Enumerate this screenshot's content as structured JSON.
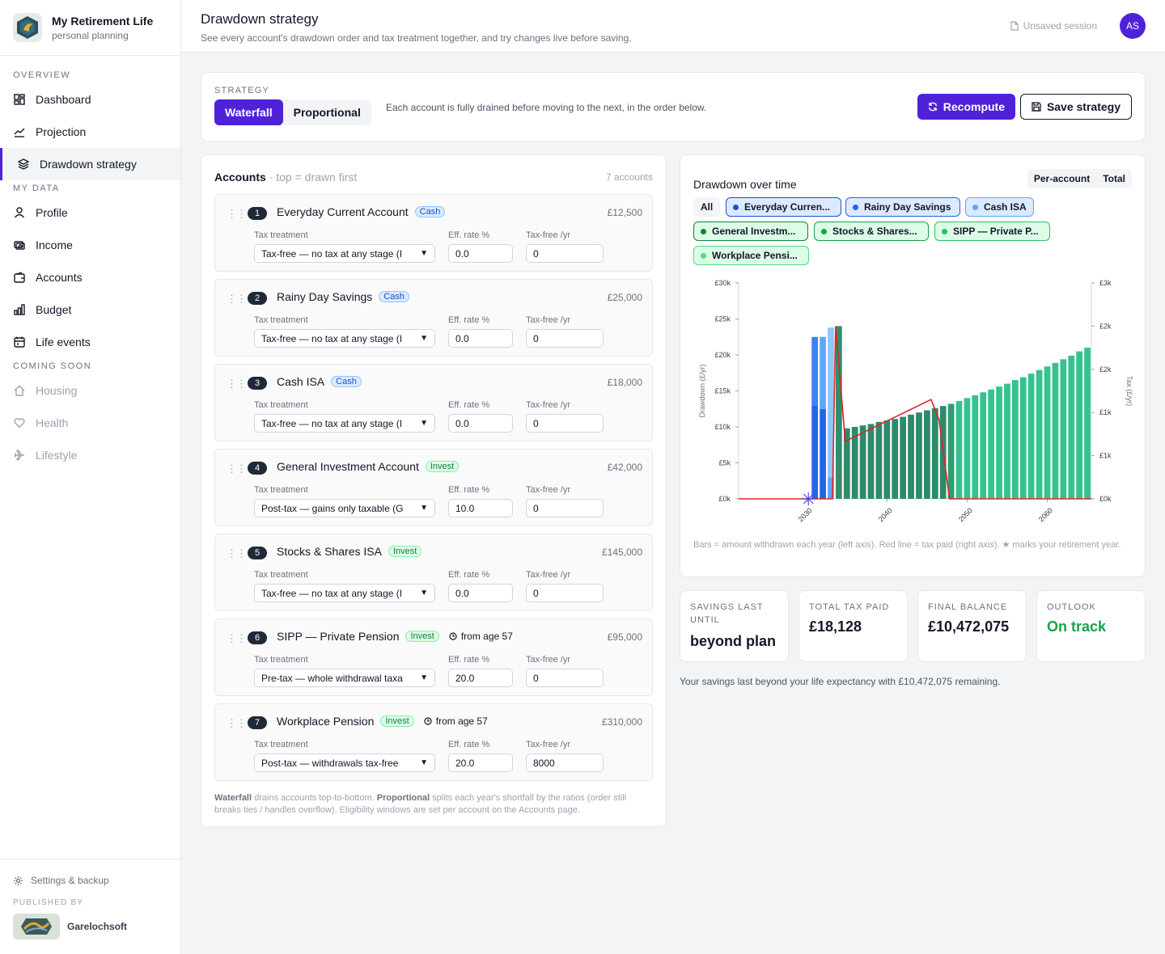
{
  "app": {
    "title": "My Retirement Life",
    "subtitle": "personal planning"
  },
  "sidebar": {
    "sections": {
      "overview": "OVERVIEW",
      "my_data": "MY DATA",
      "coming_soon": "COMING SOON"
    },
    "items": [
      {
        "label": "Dashboard",
        "icon": "dashboard-icon"
      },
      {
        "label": "Projection",
        "icon": "chart-line-icon"
      },
      {
        "label": "Drawdown strategy",
        "icon": "layers-icon"
      },
      {
        "label": "Profile",
        "icon": "user-icon"
      },
      {
        "label": "Income",
        "icon": "income-icon"
      },
      {
        "label": "Accounts",
        "icon": "wallet-icon"
      },
      {
        "label": "Budget",
        "icon": "bar-chart-icon"
      },
      {
        "label": "Life events",
        "icon": "calendar-icon"
      },
      {
        "label": "Housing",
        "icon": "home-icon"
      },
      {
        "label": "Health",
        "icon": "heart-icon"
      },
      {
        "label": "Lifestyle",
        "icon": "plane-icon"
      }
    ],
    "settings": "Settings & backup",
    "published_by": "PUBLISHED BY",
    "publisher": "Garelochsoft"
  },
  "header": {
    "title": "Drawdown strategy",
    "subtitle": "See every account's drawdown order and tax treatment together, and try changes live before saving.",
    "session": "Unsaved session",
    "avatar": "AS"
  },
  "strategy": {
    "label": "STRATEGY",
    "options": [
      "Waterfall",
      "Proportional"
    ],
    "selected": "Waterfall",
    "description": "Each account is fully drained before moving to the next, in the order below.",
    "recompute": "Recompute",
    "save": "Save strategy"
  },
  "accounts_panel": {
    "title": "Accounts",
    "hint": " · top = drawn first",
    "count": "7 accounts",
    "labels": {
      "treatment": "Tax treatment",
      "rate": "Eff. rate %",
      "taxfree": "Tax-free /yr"
    },
    "accounts": [
      {
        "n": "1",
        "name": "Everyday Current Account",
        "tag": "Cash",
        "age": "",
        "balance": "£12,500",
        "treatment": "Tax-free — no tax at any stage (I",
        "rate": "0.0",
        "taxfree": "0"
      },
      {
        "n": "2",
        "name": "Rainy Day Savings",
        "tag": "Cash",
        "age": "",
        "balance": "£25,000",
        "treatment": "Tax-free — no tax at any stage (I",
        "rate": "0.0",
        "taxfree": "0"
      },
      {
        "n": "3",
        "name": "Cash ISA",
        "tag": "Cash",
        "age": "",
        "balance": "£18,000",
        "treatment": "Tax-free — no tax at any stage (I",
        "rate": "0.0",
        "taxfree": "0"
      },
      {
        "n": "4",
        "name": "General Investment Account",
        "tag": "Invest",
        "age": "",
        "balance": "£42,000",
        "treatment": "Post-tax — gains only taxable (G",
        "rate": "10.0",
        "taxfree": "0"
      },
      {
        "n": "5",
        "name": "Stocks & Shares ISA",
        "tag": "Invest",
        "age": "",
        "balance": "£145,000",
        "treatment": "Tax-free — no tax at any stage (I",
        "rate": "0.0",
        "taxfree": "0"
      },
      {
        "n": "6",
        "name": "SIPP — Private Pension",
        "tag": "Invest",
        "age": "from age 57",
        "balance": "£95,000",
        "treatment": "Pre-tax — whole withdrawal taxa",
        "rate": "20.0",
        "taxfree": "0"
      },
      {
        "n": "7",
        "name": "Workplace Pension",
        "tag": "Invest",
        "age": "from age 57",
        "balance": "£310,000",
        "treatment": "Post-tax — withdrawals tax-free",
        "rate": "20.0",
        "taxfree": "8000"
      }
    ],
    "footer_a": "Waterfall",
    "footer_b": " drains accounts top-to-bottom. ",
    "footer_c": "Proportional",
    "footer_d": " splits each year's shortfall by the ratios (order still breaks ties / handles overflow). Eligibility windows are set per account on the Accounts page."
  },
  "chart_panel": {
    "title": "Drawdown over time",
    "toggle": [
      "Per-account",
      "Total"
    ],
    "chips": [
      {
        "label": "All",
        "color": ""
      },
      {
        "label": "Everyday Curren...",
        "color": "#1d4ed8"
      },
      {
        "label": "Rainy Day Savings",
        "color": "#2563eb"
      },
      {
        "label": "Cash ISA",
        "color": "#60a5fa"
      },
      {
        "label": "General Investm...",
        "color": "#15803d"
      },
      {
        "label": "Stocks & Shares...",
        "color": "#16a34a"
      },
      {
        "label": "SIPP — Private P...",
        "color": "#22c55e"
      },
      {
        "label": "Workplace Pensi...",
        "color": "#4ade80"
      }
    ],
    "note": "Bars = amount withdrawn each year (left axis). Red line = tax paid (right axis). ★ marks your retirement year."
  },
  "chart_data": {
    "type": "bar",
    "ylabel": "Drawdown (£/yr)",
    "y2label": "Tax (£/yr)",
    "ylim": [
      0,
      30000
    ],
    "y2lim": [
      0,
      3000
    ],
    "yticks": [
      "£0k",
      "£5k",
      "£10k",
      "£15k",
      "£20k",
      "£25k",
      "£30k"
    ],
    "y2ticks": [
      "£0k",
      "£1k",
      "£1k",
      "£2k",
      "£2k",
      "£3k"
    ],
    "xticks": [
      "2030",
      "2040",
      "2050",
      "2060"
    ],
    "xlim": [
      2021.5,
      2065.5
    ],
    "retirement_year": 2030,
    "bars": [
      {
        "year": 2031,
        "segments": [
          {
            "v": 13000,
            "c": "#2563eb"
          },
          {
            "v": 9500,
            "c": "#3b82f6"
          }
        ]
      },
      {
        "year": 2032,
        "segments": [
          {
            "v": 12500,
            "c": "#2563eb"
          },
          {
            "v": 10000,
            "c": "#60a5fa"
          }
        ]
      },
      {
        "year": 2033,
        "segments": [
          {
            "v": 3000,
            "c": "#60a5fa"
          },
          {
            "v": 20800,
            "c": "#93c5fd"
          }
        ]
      },
      {
        "year": 2034,
        "segments": [
          {
            "v": 4000,
            "c": "#3b8a6c"
          },
          {
            "v": 20000,
            "c": "#2f8f6c"
          }
        ]
      },
      {
        "year": 2035,
        "segments": [
          {
            "v": 9800,
            "c": "#2e8b6a"
          }
        ]
      },
      {
        "year": 2036,
        "segments": [
          {
            "v": 10000,
            "c": "#2e8b6a"
          }
        ]
      },
      {
        "year": 2037,
        "segments": [
          {
            "v": 10200,
            "c": "#2e8b6a"
          }
        ]
      },
      {
        "year": 2038,
        "segments": [
          {
            "v": 10400,
            "c": "#2e8b6a"
          }
        ]
      },
      {
        "year": 2039,
        "segments": [
          {
            "v": 10700,
            "c": "#2e8b6a"
          }
        ]
      },
      {
        "year": 2040,
        "segments": [
          {
            "v": 10900,
            "c": "#2e8b6a"
          }
        ]
      },
      {
        "year": 2041,
        "segments": [
          {
            "v": 11100,
            "c": "#2e8b6a"
          }
        ]
      },
      {
        "year": 2042,
        "segments": [
          {
            "v": 11400,
            "c": "#2e8b6a"
          }
        ]
      },
      {
        "year": 2043,
        "segments": [
          {
            "v": 11700,
            "c": "#2e8b6a"
          }
        ]
      },
      {
        "year": 2044,
        "segments": [
          {
            "v": 12000,
            "c": "#2e8b6a"
          }
        ]
      },
      {
        "year": 2045,
        "segments": [
          {
            "v": 12300,
            "c": "#2e8b6a"
          }
        ]
      },
      {
        "year": 2046,
        "segments": [
          {
            "v": 12600,
            "c": "#2e8b6a"
          }
        ]
      },
      {
        "year": 2047,
        "segments": [
          {
            "v": 12900,
            "c": "#2e8b6a"
          }
        ]
      },
      {
        "year": 2048,
        "segments": [
          {
            "v": 13200,
            "c": "#2e9e72"
          }
        ]
      },
      {
        "year": 2049,
        "segments": [
          {
            "v": 13600,
            "c": "#34c38f"
          }
        ]
      },
      {
        "year": 2050,
        "segments": [
          {
            "v": 14000,
            "c": "#34c38f"
          }
        ]
      },
      {
        "year": 2051,
        "segments": [
          {
            "v": 14400,
            "c": "#34c38f"
          }
        ]
      },
      {
        "year": 2052,
        "segments": [
          {
            "v": 14800,
            "c": "#34c38f"
          }
        ]
      },
      {
        "year": 2053,
        "segments": [
          {
            "v": 15200,
            "c": "#34c38f"
          }
        ]
      },
      {
        "year": 2054,
        "segments": [
          {
            "v": 15600,
            "c": "#34c38f"
          }
        ]
      },
      {
        "year": 2055,
        "segments": [
          {
            "v": 16000,
            "c": "#34c38f"
          }
        ]
      },
      {
        "year": 2056,
        "segments": [
          {
            "v": 16500,
            "c": "#34c38f"
          }
        ]
      },
      {
        "year": 2057,
        "segments": [
          {
            "v": 16900,
            "c": "#34c38f"
          }
        ]
      },
      {
        "year": 2058,
        "segments": [
          {
            "v": 17400,
            "c": "#34c38f"
          }
        ]
      },
      {
        "year": 2059,
        "segments": [
          {
            "v": 17900,
            "c": "#34c38f"
          }
        ]
      },
      {
        "year": 2060,
        "segments": [
          {
            "v": 18400,
            "c": "#34c38f"
          }
        ]
      },
      {
        "year": 2061,
        "segments": [
          {
            "v": 18900,
            "c": "#34c38f"
          }
        ]
      },
      {
        "year": 2062,
        "segments": [
          {
            "v": 19400,
            "c": "#34c38f"
          }
        ]
      },
      {
        "year": 2063,
        "segments": [
          {
            "v": 19900,
            "c": "#34c38f"
          }
        ]
      },
      {
        "year": 2064,
        "segments": [
          {
            "v": 20500,
            "c": "#34c38f"
          }
        ]
      },
      {
        "year": 2065,
        "segments": [
          {
            "v": 21000,
            "c": "#34c38f"
          }
        ]
      }
    ],
    "tax_line": [
      [
        2021.5,
        0
      ],
      [
        2033.2,
        0
      ],
      [
        2033.6,
        2400
      ],
      [
        2034.8,
        800
      ],
      [
        2045.5,
        1380
      ],
      [
        2046.5,
        1100
      ],
      [
        2047.8,
        0
      ],
      [
        2065.5,
        0
      ]
    ]
  },
  "stats": [
    {
      "label": "SAVINGS LAST UNTIL",
      "value": "beyond plan"
    },
    {
      "label": "TOTAL TAX PAID",
      "value": "£18,128"
    },
    {
      "label": "FINAL BALANCE",
      "value": "£10,472,075"
    },
    {
      "label": "OUTLOOK",
      "value": "On track"
    }
  ],
  "summary": "Your savings last beyond your life expectancy with £10,472,075 remaining."
}
